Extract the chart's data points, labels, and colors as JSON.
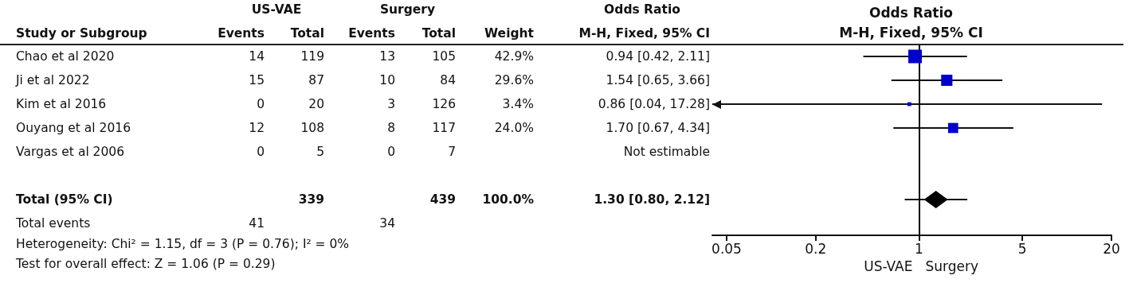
{
  "chart_data": [
    {
      "type": "other",
      "categories": [
        "Events",
        "Total",
        "Events",
        "Total",
        "Weight",
        "M-H, Fixed, 95% CI"
      ],
      "y_categories": [
        "Chao et al 2020",
        "Ji et al 2022",
        "Kim et al 2016",
        "Ouyang et al 2016",
        "Vargas et al 2006",
        null,
        "Total (95% CI)",
        "Total events"
      ],
      "cell_labels": [
        [
          "14",
          "119",
          "13",
          "105",
          "42.9%",
          "0.94 [0.42, 2.11]"
        ],
        [
          "15",
          "87",
          "10",
          "84",
          "29.6%",
          "1.54 [0.65, 3.66]"
        ],
        [
          "0",
          "20",
          "3",
          "126",
          "3.4%",
          "0.86 [0.04, 17.28]"
        ],
        [
          "12",
          "108",
          "8",
          "117",
          "24.0%",
          "1.70 [0.67, 4.34]"
        ],
        [
          "0",
          "5",
          "0",
          "7",
          null,
          "Not estimable"
        ],
        [
          null,
          null,
          null,
          null,
          null,
          null
        ],
        [
          null,
          "339",
          null,
          "439",
          "100.0%",
          "1.30 [0.80, 2.12]"
        ],
        [
          "41",
          null,
          "34",
          null,
          null,
          null
        ]
      ],
      "annotations": [
        "Study or Subgroup",
        "US-VAE",
        "Surgery",
        "Odds Ratio",
        "Heterogeneity: Chi² = 1.15, df = 3 (P = 0.76); I² = 0%",
        "Test for overall effect: Z = 1.06 (P = 0.29)"
      ]
    },
    {
      "type": "bubble",
      "title": "Odds Ratio",
      "subtitle": "M-H, Fixed, 95% CI",
      "orientation": "horizontal",
      "log": "x",
      "categories": [
        null,
        null,
        null,
        null,
        null,
        null,
        null,
        null
      ],
      "series": [
        {
          "type": "bubble",
          "marker": "square",
          "color": "#0000cc",
          "values": [
            0.94,
            1.54,
            0.86,
            1.7,
            null,
            null,
            null,
            null
          ],
          "sizes": [
            1,
            0.69,
            0.079,
            0.559,
            null,
            null,
            null,
            null
          ],
          "errors": [
            [
              0.42,
              2.11
            ],
            [
              0.65,
              3.66
            ],
            [
              0.04,
              17.28
            ],
            [
              0.67,
              4.34
            ],
            null,
            null,
            null,
            null
          ]
        },
        {
          "type": "scatter",
          "marker": "diamond",
          "color": "#000000",
          "values": [
            null,
            null,
            null,
            null,
            null,
            null,
            1.3,
            null
          ],
          "errors": [
            null,
            null,
            null,
            null,
            null,
            null,
            [
              0.8,
              2.12
            ],
            null
          ]
        }
      ],
      "xlim": [
        0.04,
        20
      ],
      "xticks": [
        0.05,
        0.2,
        1,
        5,
        20
      ],
      "ref_lines": [
        {
          "axis": "x",
          "value": 1,
          "color": "#000000"
        }
      ],
      "grid": false,
      "tick_labels": "x",
      "annotations": [
        "US-VAE",
        "Surgery"
      ]
    }
  ]
}
